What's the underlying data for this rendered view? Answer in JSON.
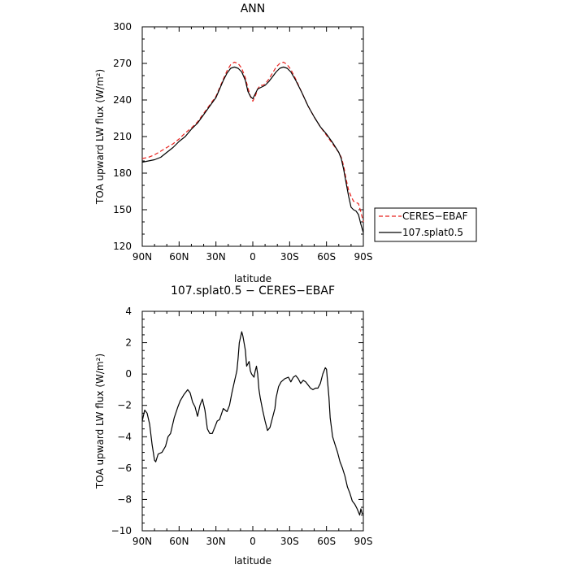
{
  "chart_data": [
    {
      "type": "line",
      "title": "ANN",
      "xlabel": "latitude",
      "ylabel": "TOA upward LW flux (W/m²)",
      "xlim": [
        90,
        -90
      ],
      "ylim": [
        120,
        300
      ],
      "xtick_values": [
        90,
        60,
        30,
        0,
        -30,
        -60,
        -90
      ],
      "xtick_labels": [
        "90N",
        "60N",
        "30N",
        "0",
        "30S",
        "60S",
        "90S"
      ],
      "ytick_values": [
        120,
        150,
        180,
        210,
        240,
        270,
        300
      ],
      "ytick_labels": [
        "120",
        "150",
        "180",
        "210",
        "240",
        "270",
        "300"
      ],
      "legend_position": "outside-right",
      "series": [
        {
          "name": "CERES−EBAF",
          "color": "#e8211d",
          "dash": "dashed",
          "points": [
            [
              90,
              192
            ],
            [
              85,
              193
            ],
            [
              80,
              195
            ],
            [
              75,
              198
            ],
            [
              70,
              201
            ],
            [
              65,
              204
            ],
            [
              60,
              208
            ],
            [
              55,
              213
            ],
            [
              50,
              217
            ],
            [
              45,
              222
            ],
            [
              40,
              229
            ],
            [
              35,
              236
            ],
            [
              30,
              243
            ],
            [
              27,
              250
            ],
            [
              24,
              257
            ],
            [
              21,
              264
            ],
            [
              18,
              269
            ],
            [
              15,
              271
            ],
            [
              12,
              270
            ],
            [
              9,
              266
            ],
            [
              6,
              258
            ],
            [
              4,
              250
            ],
            [
              2,
              243
            ],
            [
              0,
              239
            ],
            [
              -2,
              243
            ],
            [
              -4,
              249
            ],
            [
              -6,
              252
            ],
            [
              -8,
              252
            ],
            [
              -10,
              253
            ],
            [
              -13,
              257
            ],
            [
              -16,
              262
            ],
            [
              -19,
              267
            ],
            [
              -22,
              270
            ],
            [
              -25,
              271
            ],
            [
              -28,
              269
            ],
            [
              -31,
              265
            ],
            [
              -35,
              257
            ],
            [
              -40,
              246
            ],
            [
              -45,
              235
            ],
            [
              -50,
              226
            ],
            [
              -55,
              218
            ],
            [
              -60,
              211
            ],
            [
              -65,
              204
            ],
            [
              -70,
              197
            ],
            [
              -72,
              193
            ],
            [
              -74,
              186
            ],
            [
              -76,
              175
            ],
            [
              -78,
              166
            ],
            [
              -80,
              161
            ],
            [
              -82,
              157
            ],
            [
              -84,
              156
            ],
            [
              -86,
              155
            ],
            [
              -88,
              148
            ],
            [
              -90,
              140
            ]
          ]
        },
        {
          "name": "107.splat0.5",
          "color": "#000000",
          "dash": "solid",
          "points": [
            [
              90,
              189
            ],
            [
              85,
              190
            ],
            [
              80,
              191
            ],
            [
              75,
              193
            ],
            [
              70,
              197
            ],
            [
              65,
              201
            ],
            [
              60,
              206
            ],
            [
              55,
              210
            ],
            [
              50,
              216
            ],
            [
              45,
              221
            ],
            [
              40,
              228
            ],
            [
              35,
              235
            ],
            [
              30,
              242
            ],
            [
              27,
              249
            ],
            [
              24,
              256
            ],
            [
              21,
              262
            ],
            [
              18,
              266
            ],
            [
              15,
              267
            ],
            [
              12,
              266
            ],
            [
              9,
              263
            ],
            [
              6,
              256
            ],
            [
              4,
              247
            ],
            [
              2,
              243
            ],
            [
              0,
              241
            ],
            [
              -2,
              245
            ],
            [
              -4,
              249
            ],
            [
              -6,
              250
            ],
            [
              -8,
              251
            ],
            [
              -10,
              252
            ],
            [
              -13,
              255
            ],
            [
              -16,
              259
            ],
            [
              -19,
              263
            ],
            [
              -22,
              266
            ],
            [
              -25,
              267
            ],
            [
              -28,
              266
            ],
            [
              -31,
              263
            ],
            [
              -35,
              256
            ],
            [
              -40,
              246
            ],
            [
              -45,
              235
            ],
            [
              -50,
              226
            ],
            [
              -55,
              218
            ],
            [
              -60,
              212
            ],
            [
              -65,
              205
            ],
            [
              -70,
              197
            ],
            [
              -72,
              192
            ],
            [
              -74,
              183
            ],
            [
              -76,
              172
            ],
            [
              -78,
              161
            ],
            [
              -80,
              152
            ],
            [
              -82,
              150
            ],
            [
              -84,
              149
            ],
            [
              -86,
              146
            ],
            [
              -88,
              138
            ],
            [
              -90,
              131
            ]
          ]
        }
      ]
    },
    {
      "type": "line",
      "title": "107.splat0.5 − CERES−EBAF",
      "xlabel": "latitude",
      "ylabel": "TOA upward LW flux (W/m²)",
      "xlim": [
        90,
        -90
      ],
      "ylim": [
        -10,
        4
      ],
      "xtick_values": [
        90,
        60,
        30,
        0,
        -30,
        -60,
        -90
      ],
      "xtick_labels": [
        "90N",
        "60N",
        "30N",
        "0",
        "30S",
        "60S",
        "90S"
      ],
      "ytick_values": [
        -10,
        -8,
        -6,
        -4,
        -2,
        0,
        2,
        4
      ],
      "ytick_labels": [
        "−10",
        "−8",
        "−6",
        "−4",
        "−2",
        "0",
        "2",
        "4"
      ],
      "series": [
        {
          "color": "#000000",
          "dash": "solid",
          "points": [
            [
              90,
              -3.0
            ],
            [
              88,
              -2.3
            ],
            [
              86,
              -2.5
            ],
            [
              84,
              -3.2
            ],
            [
              82,
              -4.5
            ],
            [
              80,
              -5.5
            ],
            [
              79,
              -5.6
            ],
            [
              77,
              -5.1
            ],
            [
              74,
              -5.0
            ],
            [
              71,
              -4.6
            ],
            [
              69,
              -4.0
            ],
            [
              67,
              -3.8
            ],
            [
              64,
              -2.8
            ],
            [
              61,
              -2.1
            ],
            [
              59,
              -1.7
            ],
            [
              56,
              -1.3
            ],
            [
              53,
              -1.0
            ],
            [
              51,
              -1.2
            ],
            [
              49,
              -1.8
            ],
            [
              47,
              -2.1
            ],
            [
              45,
              -2.7
            ],
            [
              43,
              -2.0
            ],
            [
              41,
              -1.6
            ],
            [
              39,
              -2.3
            ],
            [
              37,
              -3.5
            ],
            [
              35,
              -3.8
            ],
            [
              33,
              -3.8
            ],
            [
              31,
              -3.4
            ],
            [
              29,
              -3.0
            ],
            [
              27,
              -2.9
            ],
            [
              24,
              -2.2
            ],
            [
              21,
              -2.4
            ],
            [
              19,
              -2.0
            ],
            [
              17,
              -1.2
            ],
            [
              15,
              -0.5
            ],
            [
              13,
              0.2
            ],
            [
              12,
              1.0
            ],
            [
              11,
              2.0
            ],
            [
              9,
              2.7
            ],
            [
              8,
              2.4
            ],
            [
              6,
              1.5
            ],
            [
              5,
              0.5
            ],
            [
              3,
              0.8
            ],
            [
              2,
              0.2
            ],
            [
              1,
              0.0
            ],
            [
              -1,
              -0.2
            ],
            [
              -2,
              0.2
            ],
            [
              -3,
              0.5
            ],
            [
              -4,
              0.0
            ],
            [
              -5,
              -1.0
            ],
            [
              -6,
              -1.5
            ],
            [
              -8,
              -2.3
            ],
            [
              -10,
              -3.0
            ],
            [
              -12,
              -3.6
            ],
            [
              -14,
              -3.4
            ],
            [
              -16,
              -2.8
            ],
            [
              -18,
              -2.2
            ],
            [
              -19,
              -1.5
            ],
            [
              -21,
              -0.8
            ],
            [
              -23,
              -0.5
            ],
            [
              -26,
              -0.3
            ],
            [
              -29,
              -0.2
            ],
            [
              -31,
              -0.5
            ],
            [
              -33,
              -0.2
            ],
            [
              -35,
              -0.1
            ],
            [
              -37,
              -0.3
            ],
            [
              -39,
              -0.6
            ],
            [
              -41,
              -0.4
            ],
            [
              -43,
              -0.5
            ],
            [
              -45,
              -0.7
            ],
            [
              -47,
              -0.9
            ],
            [
              -49,
              -1.0
            ],
            [
              -51,
              -0.9
            ],
            [
              -53,
              -0.9
            ],
            [
              -55,
              -0.6
            ],
            [
              -57,
              0.0
            ],
            [
              -59,
              0.4
            ],
            [
              -60,
              0.3
            ],
            [
              -62,
              -1.5
            ],
            [
              -63,
              -2.8
            ],
            [
              -65,
              -4.0
            ],
            [
              -67,
              -4.5
            ],
            [
              -69,
              -5.0
            ],
            [
              -71,
              -5.6
            ],
            [
              -73,
              -6.0
            ],
            [
              -75,
              -6.5
            ],
            [
              -77,
              -7.2
            ],
            [
              -79,
              -7.6
            ],
            [
              -81,
              -8.1
            ],
            [
              -83,
              -8.3
            ],
            [
              -85,
              -8.6
            ],
            [
              -87,
              -9.0
            ],
            [
              -88,
              -8.6
            ],
            [
              -89,
              -8.9
            ],
            [
              -90,
              -8.9
            ]
          ]
        }
      ]
    }
  ]
}
